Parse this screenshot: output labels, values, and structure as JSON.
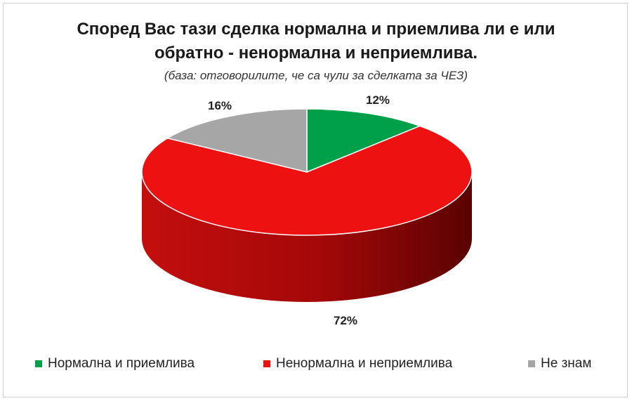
{
  "chart_data": {
    "type": "pie",
    "title_line1": "Според Вас тази сделка нормална и приемлива ли е или",
    "title_line2": "обратно - ненормална и неприемлива.",
    "subtitle": "(база: отговорилите, че са чули за сделката за ЧЕЗ)",
    "slices": [
      {
        "name": "Нормална и приемлива",
        "value": 12,
        "label": "12%",
        "color": "#00a04a"
      },
      {
        "name": "Ненормална и неприемлива",
        "value": 72,
        "label": "72%",
        "color": "#ee1111"
      },
      {
        "name": "Не знам",
        "value": 16,
        "label": "16%",
        "color": "#a6a6a6"
      }
    ],
    "legend_position": "bottom",
    "style": "3d-pie"
  }
}
